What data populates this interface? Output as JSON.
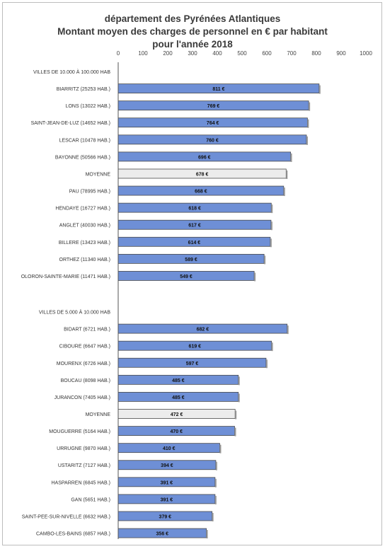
{
  "chart_data": {
    "type": "bar",
    "orientation": "horizontal",
    "title_lines": [
      "département des Pyrénées Atlantiques",
      "Montant moyen des charges de personnel en € par habitant",
      "pour l'année 2018"
    ],
    "xlim": [
      0,
      1000
    ],
    "x_ticks": [
      "0",
      "100",
      "200",
      "300",
      "400",
      "500",
      "600",
      "700",
      "800",
      "900",
      "1000"
    ],
    "x_axis_position": "top",
    "grid": false,
    "legend": "none",
    "colors": {
      "bar": "#6e8fd6",
      "average_bar": "#ececec",
      "bar_border": "#4a4a4a"
    },
    "groups": [
      {
        "label": "VILLES DE 10.000 À 100.000 HAB",
        "bars": [
          {
            "category": "BIARRITZ (25253 HAB.)",
            "value": 811,
            "label": "811 €",
            "kind": "commune"
          },
          {
            "category": "LONS (13022 HAB.)",
            "value": 769,
            "label": "769 €",
            "kind": "commune"
          },
          {
            "category": "SAINT-JEAN-DE-LUZ (14652 HAB.)",
            "value": 764,
            "label": "764 €",
            "kind": "commune"
          },
          {
            "category": "LESCAR (10478 HAB.)",
            "value": 760,
            "label": "760 €",
            "kind": "commune"
          },
          {
            "category": "BAYONNE (50566 HAB.)",
            "value": 696,
            "label": "696 €",
            "kind": "commune"
          },
          {
            "category": "MOYENNE",
            "value": 678,
            "label": "678 €",
            "kind": "average"
          },
          {
            "category": "PAU (78995 HAB.)",
            "value": 668,
            "label": "668 €",
            "kind": "commune"
          },
          {
            "category": "HENDAYE (16727 HAB.)",
            "value": 618,
            "label": "618 €",
            "kind": "commune"
          },
          {
            "category": "ANGLET (40030 HAB.)",
            "value": 617,
            "label": "617 €",
            "kind": "commune"
          },
          {
            "category": "BILLERE (13423 HAB.)",
            "value": 614,
            "label": "614 €",
            "kind": "commune"
          },
          {
            "category": "ORTHEZ (11340 HAB.)",
            "value": 589,
            "label": "589 €",
            "kind": "commune"
          },
          {
            "category": "OLORON-SAINTE-MARIE (11471 HAB.)",
            "value": 549,
            "label": "549 €",
            "kind": "commune"
          }
        ]
      },
      {
        "label": "VILLES DE 5.000 À 10.000 HAB",
        "bars": [
          {
            "category": "BIDART (6721 HAB.)",
            "value": 682,
            "label": "682 €",
            "kind": "commune"
          },
          {
            "category": "CIBOURE (6647 HAB.)",
            "value": 619,
            "label": "619 €",
            "kind": "commune"
          },
          {
            "category": "MOURENX (6726 HAB.)",
            "value": 597,
            "label": "597 €",
            "kind": "commune"
          },
          {
            "category": "BOUCAU (8098 HAB.)",
            "value": 485,
            "label": "485 €",
            "kind": "commune"
          },
          {
            "category": "JURANCON (7405 HAB.)",
            "value": 485,
            "label": "485 €",
            "kind": "commune"
          },
          {
            "category": "MOYENNE",
            "value": 472,
            "label": "472 €",
            "kind": "average"
          },
          {
            "category": "MOUGUERRE (5164 HAB.)",
            "value": 470,
            "label": "470 €",
            "kind": "commune"
          },
          {
            "category": "URRUGNE (9870 HAB.)",
            "value": 410,
            "label": "410 €",
            "kind": "commune"
          },
          {
            "category": "USTARITZ (7127 HAB.)",
            "value": 394,
            "label": "394 €",
            "kind": "commune"
          },
          {
            "category": "HASPARREN (6845 HAB.)",
            "value": 391,
            "label": "391 €",
            "kind": "commune"
          },
          {
            "category": "GAN (5651 HAB.)",
            "value": 391,
            "label": "391 €",
            "kind": "commune"
          },
          {
            "category": "SAINT-PEE-SUR-NIVELLE (6632 HAB.)",
            "value": 379,
            "label": "379 €",
            "kind": "commune"
          },
          {
            "category": "CAMBO-LES-BAINS (6857 HAB.)",
            "value": 356,
            "label": "356 €",
            "kind": "commune"
          }
        ]
      }
    ]
  }
}
